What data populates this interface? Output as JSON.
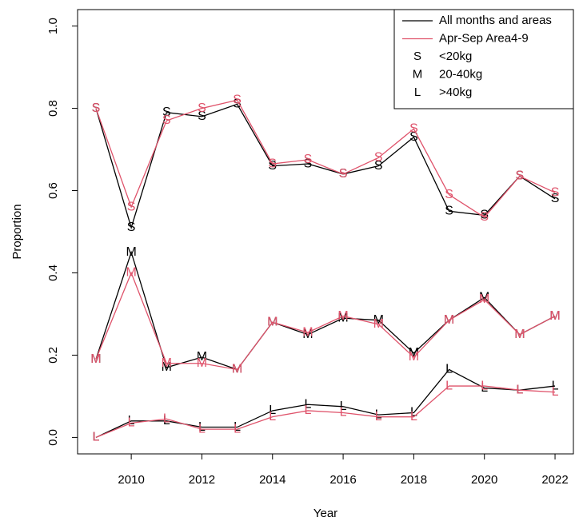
{
  "chart_data": {
    "type": "line",
    "x_label": "Year",
    "y_label": "Proportion",
    "x": [
      2009,
      2010,
      2011,
      2012,
      2013,
      2014,
      2015,
      2016,
      2017,
      2018,
      2019,
      2020,
      2021,
      2022
    ],
    "size_classes": [
      {
        "symbol": "S",
        "label": "<20kg"
      },
      {
        "symbol": "M",
        "label": "20-40kg"
      },
      {
        "symbol": "L",
        "label": ">40kg"
      }
    ],
    "series": [
      {
        "name": "All months and areas",
        "color": "#000000",
        "values": [
          [
            0.8,
            0.51,
            0.79,
            0.78,
            0.81,
            0.66,
            0.665,
            0.64,
            0.66,
            0.73,
            0.55,
            0.54,
            0.635,
            0.58
          ],
          [
            0.19,
            0.45,
            0.17,
            0.195,
            0.165,
            0.28,
            0.25,
            0.29,
            0.285,
            0.205,
            0.285,
            0.34,
            0.25,
            0.295
          ],
          [
            0.0,
            0.04,
            0.04,
            0.025,
            0.025,
            0.065,
            0.08,
            0.075,
            0.055,
            0.06,
            0.165,
            0.12,
            0.115,
            0.125
          ]
        ]
      },
      {
        "name": "Apr-Sep Area4-9",
        "color": "#DF536B",
        "values": [
          [
            0.8,
            0.56,
            0.77,
            0.8,
            0.82,
            0.665,
            0.675,
            0.64,
            0.68,
            0.75,
            0.59,
            0.535,
            0.635,
            0.595
          ],
          [
            0.19,
            0.4,
            0.18,
            0.18,
            0.165,
            0.28,
            0.255,
            0.295,
            0.275,
            0.195,
            0.285,
            0.335,
            0.25,
            0.295
          ],
          [
            0.0,
            0.035,
            0.045,
            0.02,
            0.02,
            0.05,
            0.065,
            0.06,
            0.05,
            0.05,
            0.125,
            0.125,
            0.115,
            0.11
          ]
        ]
      }
    ],
    "xlim": [
      2008.48,
      2022.52
    ],
    "xticks": [
      2010,
      2012,
      2014,
      2016,
      2018,
      2020,
      2022
    ],
    "ylim": [
      -0.04,
      1.04
    ],
    "yticks": [
      {
        "value": 0,
        "label": "0.0"
      },
      {
        "value": 0.2,
        "label": "0.2"
      },
      {
        "value": 0.4,
        "label": "0.4"
      },
      {
        "value": 0.6,
        "label": "0.6"
      },
      {
        "value": 0.8,
        "label": "0.8"
      },
      {
        "value": 1,
        "label": "1.0"
      }
    ],
    "legend": "top-right"
  }
}
